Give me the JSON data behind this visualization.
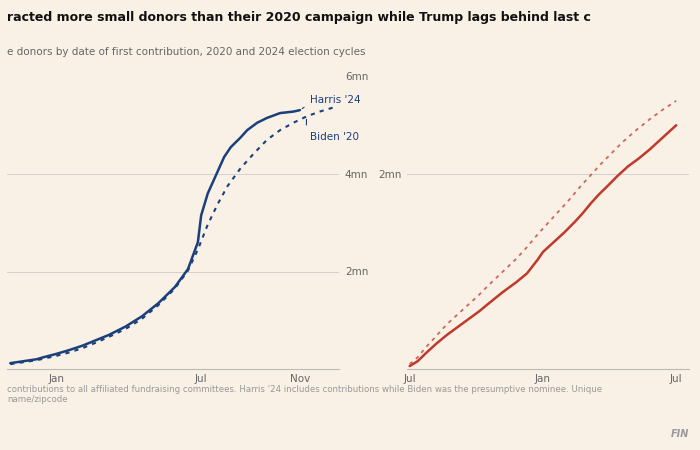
{
  "title": "racted more small donors than their 2020 campaign while Trump lags behind last c",
  "subtitle": "e donors by date of first contribution, 2020 and 2024 election cycles",
  "footnote": "contributions to all affiliated fundraising committees. Harris '24 includes contributions while Biden was the presumptive nominee. Unique\nname/zipcode",
  "source": "FIN",
  "background_color": "#f9f0e6",
  "left_panel": {
    "x_ticks": [
      "Jan",
      "Jul",
      "Nov"
    ],
    "x_tick_pos": [
      0.14,
      0.58,
      0.88
    ],
    "ylim": [
      0,
      6000000
    ],
    "yticks": [
      2000000,
      4000000,
      6000000
    ],
    "ytick_labels": [
      "2mn",
      "4mn",
      "6mn"
    ],
    "annotation_harris": "Harris '24",
    "annotation_biden": "Biden '20",
    "line_color": "#1a3f7a",
    "harris_data_x": [
      0.0,
      0.04,
      0.08,
      0.1,
      0.14,
      0.18,
      0.22,
      0.26,
      0.3,
      0.35,
      0.4,
      0.45,
      0.5,
      0.54,
      0.57,
      0.58,
      0.6,
      0.63,
      0.65,
      0.67,
      0.7,
      0.72,
      0.75,
      0.78,
      0.82,
      0.86,
      0.88
    ],
    "harris_data_y": [
      120000,
      160000,
      200000,
      240000,
      310000,
      390000,
      480000,
      590000,
      700000,
      870000,
      1080000,
      1350000,
      1680000,
      2050000,
      2600000,
      3150000,
      3600000,
      4050000,
      4350000,
      4550000,
      4750000,
      4900000,
      5050000,
      5150000,
      5250000,
      5280000,
      5310000
    ],
    "biden_data_x": [
      0.0,
      0.04,
      0.08,
      0.1,
      0.14,
      0.18,
      0.22,
      0.26,
      0.3,
      0.35,
      0.4,
      0.45,
      0.5,
      0.54,
      0.57,
      0.6,
      0.63,
      0.66,
      0.7,
      0.74,
      0.78,
      0.82,
      0.86,
      0.9,
      0.94,
      0.98
    ],
    "biden_data_y": [
      100000,
      140000,
      180000,
      210000,
      270000,
      340000,
      430000,
      540000,
      660000,
      820000,
      1030000,
      1310000,
      1650000,
      2020000,
      2450000,
      2960000,
      3380000,
      3750000,
      4120000,
      4420000,
      4700000,
      4900000,
      5050000,
      5180000,
      5280000,
      5360000
    ]
  },
  "right_panel": {
    "x_ticks": [
      "Jul",
      "Jan",
      "Jul"
    ],
    "x_tick_pos": [
      0.0,
      0.5,
      1.0
    ],
    "ylim": [
      0,
      3000000
    ],
    "yticks": [
      2000000
    ],
    "ytick_labels": [
      "2mn"
    ],
    "line_color": "#c0392b",
    "trump24_data_x": [
      0.0,
      0.03,
      0.06,
      0.1,
      0.14,
      0.18,
      0.22,
      0.26,
      0.3,
      0.35,
      0.4,
      0.44,
      0.46,
      0.48,
      0.5,
      0.54,
      0.58,
      0.62,
      0.65,
      0.68,
      0.71,
      0.74,
      0.78,
      0.82,
      0.86,
      0.9,
      0.94,
      1.0
    ],
    "trump24_data_y": [
      30000,
      80000,
      160000,
      260000,
      350000,
      430000,
      510000,
      590000,
      680000,
      790000,
      890000,
      980000,
      1050000,
      1120000,
      1200000,
      1300000,
      1400000,
      1510000,
      1600000,
      1700000,
      1790000,
      1870000,
      1980000,
      2080000,
      2160000,
      2250000,
      2350000,
      2500000
    ],
    "trump20_data_x": [
      0.0,
      0.03,
      0.06,
      0.1,
      0.14,
      0.18,
      0.22,
      0.26,
      0.3,
      0.35,
      0.4,
      0.44,
      0.48,
      0.52,
      0.56,
      0.6,
      0.64,
      0.68,
      0.72,
      0.76,
      0.8,
      0.85,
      0.9,
      0.95,
      1.0
    ],
    "trump20_data_y": [
      50000,
      120000,
      220000,
      340000,
      460000,
      560000,
      660000,
      760000,
      870000,
      1000000,
      1130000,
      1250000,
      1380000,
      1500000,
      1620000,
      1740000,
      1870000,
      1990000,
      2110000,
      2220000,
      2330000,
      2450000,
      2560000,
      2660000,
      2750000
    ]
  }
}
